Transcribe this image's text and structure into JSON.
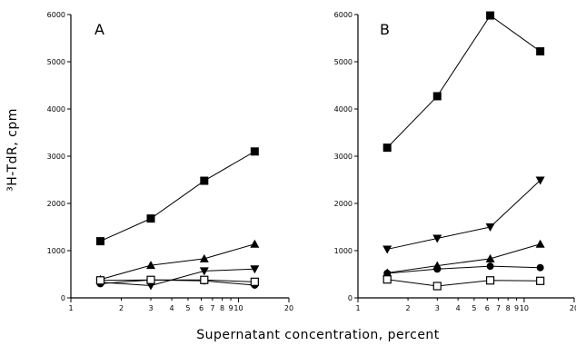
{
  "chart_data": [
    {
      "type": "line",
      "panel_label": "A",
      "title": "",
      "xlabel": "Supernatant concentration, percent",
      "ylabel": "³H-TdR, cpm",
      "x_scale": "log",
      "xlim": [
        1,
        20
      ],
      "ylim": [
        0,
        6000
      ],
      "x_tick_labels": [
        "1",
        "2",
        "3",
        "4",
        "5",
        "6",
        "7",
        "8",
        "9",
        "10",
        "20"
      ],
      "y_tick_labels": [
        "0",
        "1000",
        "2000",
        "3000",
        "4000",
        "5000",
        "6000"
      ],
      "x_ticks": [
        1,
        2,
        3,
        4,
        5,
        6,
        7,
        8,
        9,
        10,
        20
      ],
      "y_ticks": [
        0,
        1000,
        2000,
        3000,
        4000,
        5000,
        6000
      ],
      "x": [
        1.5,
        3,
        6.25,
        12.5
      ],
      "grid": false,
      "series": [
        {
          "marker": "filled-square",
          "values": [
            1200,
            1680,
            2480,
            3100
          ]
        },
        {
          "marker": "filled-triangle-up",
          "values": [
            390,
            690,
            830,
            1140
          ]
        },
        {
          "marker": "filled-triangle-down",
          "values": [
            330,
            260,
            570,
            610
          ]
        },
        {
          "marker": "filled-circle",
          "values": [
            300,
            380,
            360,
            270
          ]
        },
        {
          "marker": "open-square",
          "values": [
            370,
            380,
            380,
            340
          ]
        }
      ]
    },
    {
      "type": "line",
      "panel_label": "B",
      "title": "",
      "xlabel": "Supernatant concentration, percent",
      "ylabel": "",
      "x_scale": "log",
      "xlim": [
        1,
        20
      ],
      "ylim": [
        0,
        6000
      ],
      "x_tick_labels": [
        "1",
        "2",
        "3",
        "4",
        "5",
        "6",
        "7",
        "8",
        "9",
        "10",
        "20"
      ],
      "y_tick_labels": [
        "0",
        "1000",
        "2000",
        "3000",
        "4000",
        "5000",
        "6000"
      ],
      "x_ticks": [
        1,
        2,
        3,
        4,
        5,
        6,
        7,
        8,
        9,
        10,
        20
      ],
      "y_ticks": [
        0,
        1000,
        2000,
        3000,
        4000,
        5000,
        6000
      ],
      "x": [
        1.5,
        3,
        6.25,
        12.5
      ],
      "grid": false,
      "series": [
        {
          "marker": "filled-square",
          "values": [
            3180,
            4270,
            5980,
            5220
          ]
        },
        {
          "marker": "filled-triangle-down",
          "values": [
            1030,
            1260,
            1500,
            2490
          ]
        },
        {
          "marker": "filled-triangle-up",
          "values": [
            530,
            680,
            830,
            1140
          ]
        },
        {
          "marker": "filled-circle",
          "values": [
            520,
            610,
            670,
            640
          ]
        },
        {
          "marker": "open-square",
          "values": [
            390,
            250,
            370,
            360
          ]
        }
      ]
    }
  ]
}
